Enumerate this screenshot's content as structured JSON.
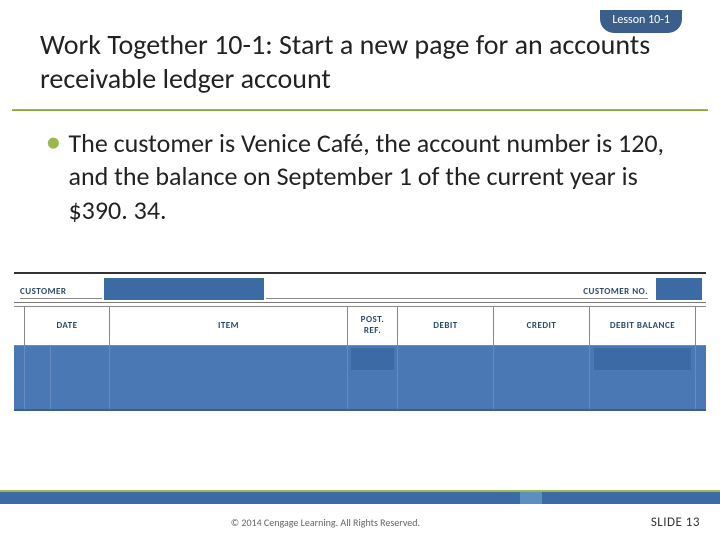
{
  "lesson_badge": "Lesson 10-1",
  "title": "Work Together 10-1: Start a new page for an accounts receivable  ledger account",
  "bullet": "The customer is Venice Café, the account number is 120, and the balance on September 1 of the current year is $390. 34.",
  "ledger": {
    "customer_label": "CUSTOMER",
    "customer_no_label": "CUSTOMER NO.",
    "columns": {
      "date": "DATE",
      "item": "ITEM",
      "post_ref": "POST. REF.",
      "debit": "DEBIT",
      "credit": "CREDIT",
      "debit_balance": "DEBIT BALANCE"
    },
    "highlight_color": "#3c6aa5",
    "body_color": "#4a78b4"
  },
  "footer": {
    "copyright": "© 2014 Cengage Learning. All Rights Reserved.",
    "slide": "SLIDE 13"
  },
  "colors": {
    "accent_green": "#9cb84a",
    "brand_blue": "#3b5f8a"
  }
}
